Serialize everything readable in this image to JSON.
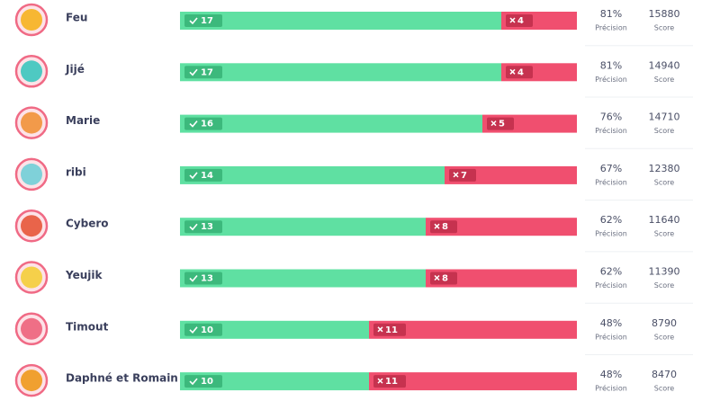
{
  "labels": {
    "precision": "Précision",
    "score": "Score"
  },
  "rows": [
    {
      "name": "Feu",
      "correct": 17,
      "wrong": 4,
      "precision": "81%",
      "score": "15880"
    },
    {
      "name": "Jijé",
      "correct": 17,
      "wrong": 4,
      "precision": "81%",
      "score": "14940"
    },
    {
      "name": "Marie",
      "correct": 16,
      "wrong": 5,
      "precision": "76%",
      "score": "14710"
    },
    {
      "name": "ribi",
      "correct": 14,
      "wrong": 7,
      "precision": "67%",
      "score": "12380"
    },
    {
      "name": "Cybero",
      "correct": 13,
      "wrong": 8,
      "precision": "62%",
      "score": "11640"
    },
    {
      "name": "Yeujik",
      "correct": 13,
      "wrong": 8,
      "precision": "62%",
      "score": "11390"
    },
    {
      "name": "Timout",
      "correct": 10,
      "wrong": 11,
      "precision": "48%",
      "score": "8790"
    },
    {
      "name": "Daphné et Romain",
      "correct": 10,
      "wrong": 11,
      "precision": "48%",
      "score": "8470"
    }
  ]
}
